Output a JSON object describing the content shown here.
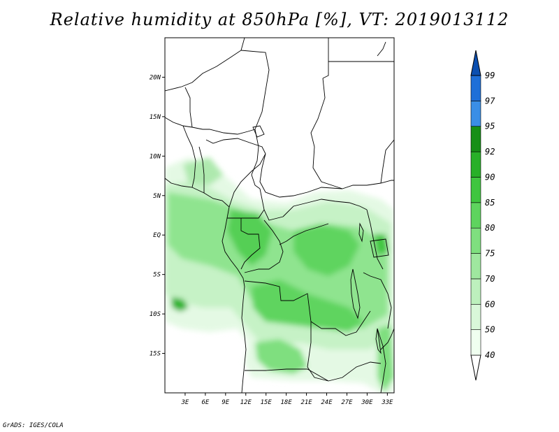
{
  "title": "Relative humidity at 850hPa [%], VT: 2019013112",
  "credit": "GrADS: IGES/COLA",
  "map": {
    "lon_range": [
      0,
      34
    ],
    "lat_range": [
      -20,
      25
    ],
    "lat_ticks": [
      {
        "value": 20,
        "label": "20N"
      },
      {
        "value": 15,
        "label": "15N"
      },
      {
        "value": 10,
        "label": "10N"
      },
      {
        "value": 5,
        "label": "5N"
      },
      {
        "value": 0,
        "label": "EQ"
      },
      {
        "value": -5,
        "label": "5S"
      },
      {
        "value": -10,
        "label": "10S"
      },
      {
        "value": -15,
        "label": "15S"
      }
    ],
    "lon_ticks": [
      {
        "value": 3,
        "label": "3E"
      },
      {
        "value": 6,
        "label": "6E"
      },
      {
        "value": 9,
        "label": "9E"
      },
      {
        "value": 12,
        "label": "12E"
      },
      {
        "value": 15,
        "label": "15E"
      },
      {
        "value": 18,
        "label": "18E"
      },
      {
        "value": 21,
        "label": "21E"
      },
      {
        "value": 24,
        "label": "24E"
      },
      {
        "value": 27,
        "label": "27E"
      },
      {
        "value": 30,
        "label": "30E"
      },
      {
        "value": 33,
        "label": "33E"
      }
    ]
  },
  "colorbar": {
    "levels": [
      {
        "label": "40",
        "color": "#f0fff0"
      },
      {
        "label": "50",
        "color": "#d9f7d9"
      },
      {
        "label": "60",
        "color": "#bdf0bd"
      },
      {
        "label": "70",
        "color": "#9fe79f"
      },
      {
        "label": "75",
        "color": "#7fdf7f"
      },
      {
        "label": "80",
        "color": "#5ed45e"
      },
      {
        "label": "85",
        "color": "#3fc63f"
      },
      {
        "label": "90",
        "color": "#28b028"
      },
      {
        "label": "92",
        "color": "#168f16"
      },
      {
        "label": "95",
        "color": "#3a8ee6"
      },
      {
        "label": "97",
        "color": "#1e6fd8"
      },
      {
        "label": "99",
        "color": "#0b4fb0"
      }
    ],
    "under_color": "#ffffff",
    "over_color": "#0b4fb0"
  }
}
